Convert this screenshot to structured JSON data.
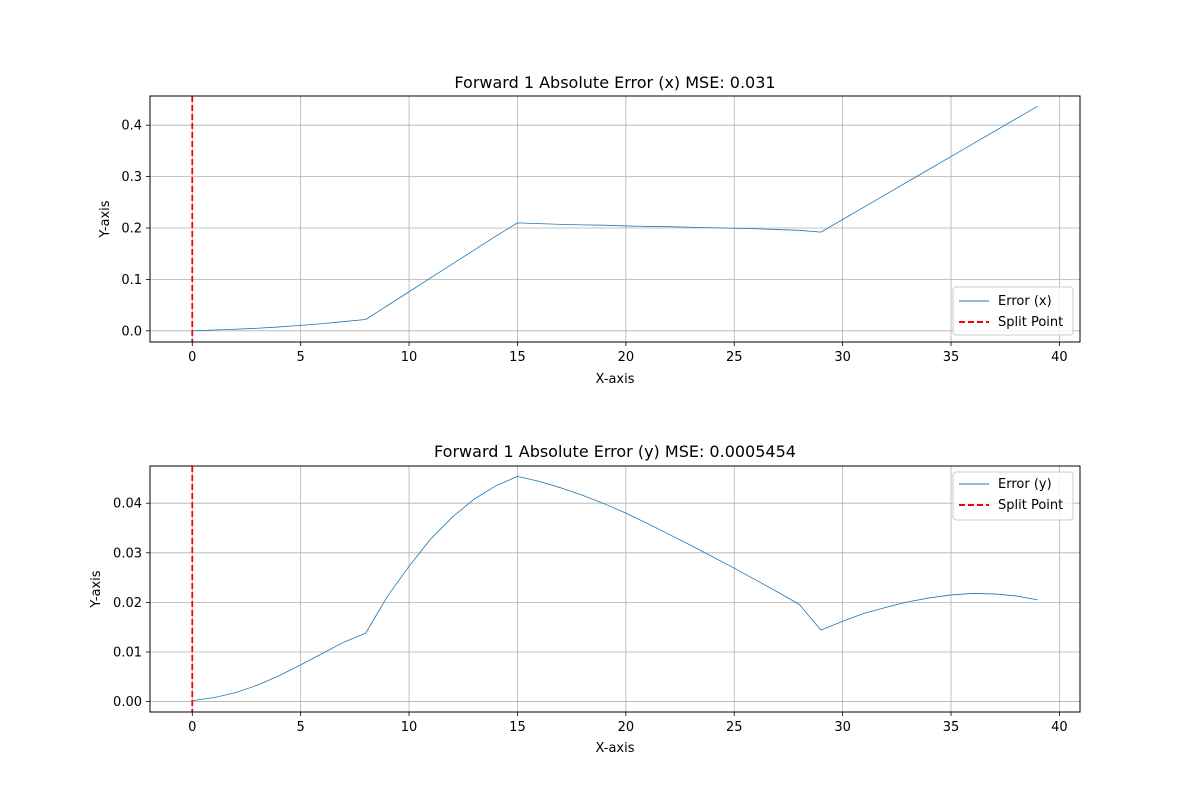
{
  "chart_data": [
    {
      "type": "line",
      "title": "Forward 1 Absolute Error (x) MSE: 0.031",
      "xlabel": "X-axis",
      "ylabel": "Y-axis",
      "xlim": [
        -1.95,
        40.95
      ],
      "ylim": [
        -0.0218,
        0.4568
      ],
      "xticks": [
        0,
        5,
        10,
        15,
        20,
        25,
        30,
        35,
        40
      ],
      "yticks": [
        0.0,
        0.1,
        0.2,
        0.3,
        0.4
      ],
      "xtick_labels": [
        "0",
        "5",
        "10",
        "15",
        "20",
        "25",
        "30",
        "35",
        "40"
      ],
      "ytick_labels": [
        "0.0",
        "0.1",
        "0.2",
        "0.3",
        "0.4"
      ],
      "grid": true,
      "legend_position": "lower-right",
      "series": [
        {
          "name": "Error (x)",
          "color": "#1f77b4",
          "x": [
            0,
            1,
            2,
            3,
            4,
            5,
            6,
            7,
            8,
            9,
            10,
            11,
            12,
            13,
            14,
            15,
            16,
            17,
            18,
            19,
            20,
            21,
            22,
            23,
            24,
            25,
            26,
            27,
            28,
            29,
            30,
            31,
            32,
            33,
            34,
            35,
            36,
            37,
            38,
            39
          ],
          "y": [
            0.0,
            0.0015,
            0.003,
            0.005,
            0.0075,
            0.0105,
            0.014,
            0.018,
            0.022,
            0.049,
            0.076,
            0.103,
            0.13,
            0.157,
            0.184,
            0.21,
            0.2085,
            0.207,
            0.206,
            0.2055,
            0.204,
            0.203,
            0.2025,
            0.2015,
            0.2005,
            0.1995,
            0.1985,
            0.197,
            0.1955,
            0.192,
            0.2165,
            0.241,
            0.2655,
            0.29,
            0.3145,
            0.339,
            0.3635,
            0.388,
            0.4125,
            0.437
          ]
        }
      ],
      "vline": {
        "name": "Split Point",
        "x": 0,
        "color": "#ff0000",
        "style": "dashed"
      }
    },
    {
      "type": "line",
      "title": "Forward 1 Absolute Error (y) MSE: 0.0005454",
      "xlabel": "X-axis",
      "ylabel": "Y-axis",
      "xlim": [
        -1.95,
        40.95
      ],
      "ylim": [
        -0.0021,
        0.0475
      ],
      "xticks": [
        0,
        5,
        10,
        15,
        20,
        25,
        30,
        35,
        40
      ],
      "yticks": [
        0.0,
        0.01,
        0.02,
        0.03,
        0.04
      ],
      "xtick_labels": [
        "0",
        "5",
        "10",
        "15",
        "20",
        "25",
        "30",
        "35",
        "40"
      ],
      "ytick_labels": [
        "0.00",
        "0.01",
        "0.02",
        "0.03",
        "0.04"
      ],
      "grid": true,
      "legend_position": "upper-right",
      "series": [
        {
          "name": "Error (y)",
          "color": "#1f77b4",
          "x": [
            0,
            1,
            2,
            3,
            4,
            5,
            6,
            7,
            8,
            9,
            10,
            11,
            12,
            13,
            14,
            15,
            16,
            17,
            18,
            19,
            20,
            21,
            22,
            23,
            24,
            25,
            26,
            27,
            28,
            29,
            30,
            31,
            32,
            33,
            34,
            35,
            36,
            37,
            38,
            39
          ],
          "y": [
            0.0002,
            0.0008,
            0.0018,
            0.0033,
            0.0052,
            0.0074,
            0.0097,
            0.012,
            0.0138,
            0.0212,
            0.0273,
            0.0328,
            0.0372,
            0.0408,
            0.0435,
            0.0454,
            0.0444,
            0.0431,
            0.0416,
            0.0399,
            0.038,
            0.0359,
            0.0337,
            0.0315,
            0.0292,
            0.0269,
            0.0245,
            0.0221,
            0.0196,
            0.0144,
            0.0162,
            0.0178,
            0.019,
            0.0201,
            0.0209,
            0.0215,
            0.0218,
            0.0217,
            0.0213,
            0.0205
          ]
        }
      ],
      "vline": {
        "name": "Split Point",
        "x": 0,
        "color": "#ff0000",
        "style": "dashed"
      }
    }
  ]
}
